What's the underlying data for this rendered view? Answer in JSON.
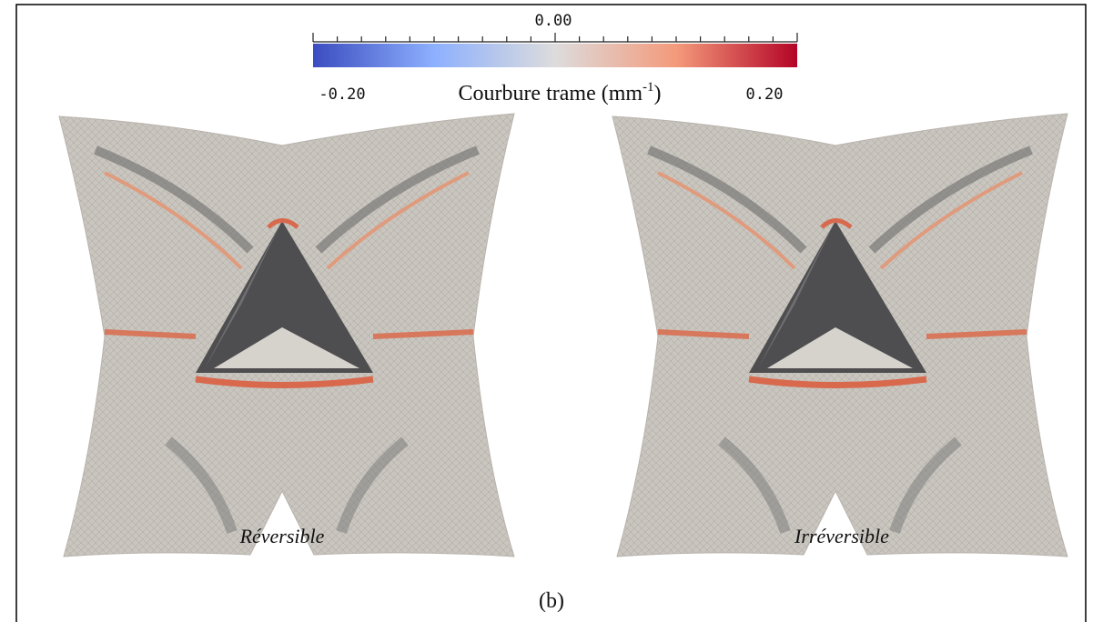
{
  "colorbar": {
    "center_label": "0.00",
    "min_label": "-0.20",
    "max_label": "0.20",
    "title": "Courbure trame (mm",
    "title_exponent": "-1",
    "title_close": ")"
  },
  "panels": [
    {
      "label": "Réversible"
    },
    {
      "label": "Irréversible"
    }
  ],
  "caption": "(b)"
}
